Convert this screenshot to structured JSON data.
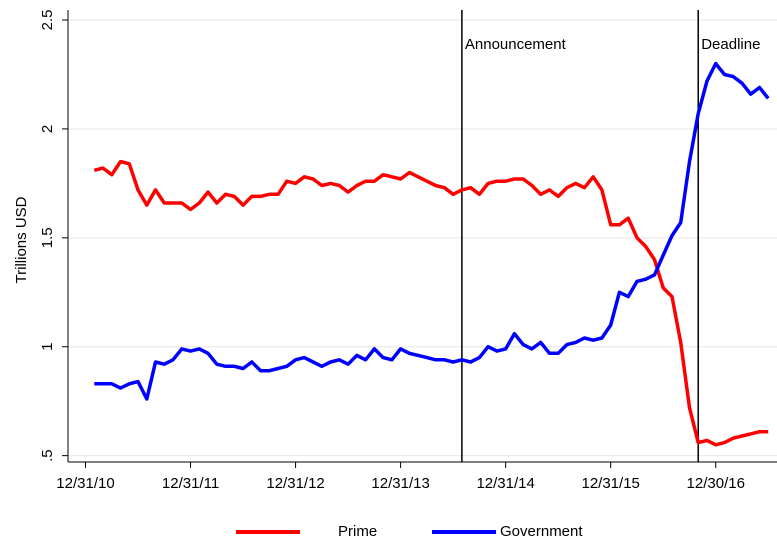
{
  "chart_data": {
    "type": "line",
    "y_label": "Trillions USD",
    "x": [
      "2011-01",
      "2011-02",
      "2011-03",
      "2011-04",
      "2011-05",
      "2011-06",
      "2011-07",
      "2011-08",
      "2011-09",
      "2011-10",
      "2011-11",
      "2011-12",
      "2012-01",
      "2012-02",
      "2012-03",
      "2012-04",
      "2012-05",
      "2012-06",
      "2012-07",
      "2012-08",
      "2012-09",
      "2012-10",
      "2012-11",
      "2012-12",
      "2013-01",
      "2013-02",
      "2013-03",
      "2013-04",
      "2013-05",
      "2013-06",
      "2013-07",
      "2013-08",
      "2013-09",
      "2013-10",
      "2013-11",
      "2013-12",
      "2014-01",
      "2014-02",
      "2014-03",
      "2014-04",
      "2014-05",
      "2014-06",
      "2014-07",
      "2014-08",
      "2014-09",
      "2014-10",
      "2014-11",
      "2014-12",
      "2015-01",
      "2015-02",
      "2015-03",
      "2015-04",
      "2015-05",
      "2015-06",
      "2015-07",
      "2015-08",
      "2015-09",
      "2015-10",
      "2015-11",
      "2015-12",
      "2016-01",
      "2016-02",
      "2016-03",
      "2016-04",
      "2016-05",
      "2016-06",
      "2016-07",
      "2016-08",
      "2016-09",
      "2016-10",
      "2016-11",
      "2016-12",
      "2017-01",
      "2017-02",
      "2017-03",
      "2017-04",
      "2017-05",
      "2017-06"
    ],
    "series": [
      {
        "name": "Prime",
        "color": "#ff0000",
        "values": [
          1.81,
          1.82,
          1.79,
          1.85,
          1.84,
          1.72,
          1.65,
          1.72,
          1.66,
          1.66,
          1.66,
          1.63,
          1.66,
          1.71,
          1.66,
          1.7,
          1.69,
          1.65,
          1.69,
          1.69,
          1.7,
          1.7,
          1.76,
          1.75,
          1.78,
          1.77,
          1.74,
          1.75,
          1.74,
          1.71,
          1.74,
          1.76,
          1.76,
          1.79,
          1.78,
          1.77,
          1.8,
          1.78,
          1.76,
          1.74,
          1.73,
          1.7,
          1.72,
          1.73,
          1.7,
          1.75,
          1.76,
          1.76,
          1.77,
          1.77,
          1.74,
          1.7,
          1.72,
          1.69,
          1.73,
          1.75,
          1.73,
          1.78,
          1.72,
          1.56,
          1.56,
          1.59,
          1.5,
          1.46,
          1.4,
          1.27,
          1.23,
          1.02,
          0.72,
          0.56,
          0.57,
          0.55,
          0.56,
          0.58,
          0.59,
          0.6,
          0.61,
          0.61
        ]
      },
      {
        "name": "Government",
        "color": "#0000ff",
        "values": [
          0.83,
          0.83,
          0.83,
          0.81,
          0.83,
          0.84,
          0.76,
          0.93,
          0.92,
          0.94,
          0.99,
          0.98,
          0.99,
          0.97,
          0.92,
          0.91,
          0.91,
          0.9,
          0.93,
          0.89,
          0.89,
          0.9,
          0.91,
          0.94,
          0.95,
          0.93,
          0.91,
          0.93,
          0.94,
          0.92,
          0.96,
          0.94,
          0.99,
          0.95,
          0.94,
          0.99,
          0.97,
          0.96,
          0.95,
          0.94,
          0.94,
          0.93,
          0.94,
          0.93,
          0.95,
          1.0,
          0.98,
          0.99,
          1.06,
          1.01,
          0.99,
          1.02,
          0.97,
          0.97,
          1.01,
          1.02,
          1.04,
          1.03,
          1.04,
          1.1,
          1.25,
          1.23,
          1.3,
          1.31,
          1.33,
          1.42,
          1.51,
          1.57,
          1.85,
          2.07,
          2.22,
          2.3,
          2.25,
          2.24,
          2.21,
          2.16,
          2.19,
          2.14
        ]
      }
    ],
    "annotations": [
      {
        "x": "2014-07",
        "text": "Announcement"
      },
      {
        "x": "2016-10",
        "text": "Deadline"
      }
    ],
    "xlim": [
      "2010-10",
      "2017-07"
    ],
    "xticks": [
      {
        "value": "2010-12",
        "label": "12/31/10"
      },
      {
        "value": "2011-12",
        "label": "12/31/11"
      },
      {
        "value": "2012-12",
        "label": "12/31/12"
      },
      {
        "value": "2013-12",
        "label": "12/31/13"
      },
      {
        "value": "2014-12",
        "label": "12/31/14"
      },
      {
        "value": "2015-12",
        "label": "12/31/15"
      },
      {
        "value": "2016-12",
        "label": "12/30/16"
      }
    ],
    "ylim": [
      0.48,
      2.5
    ],
    "yticks": [
      {
        "value": 0.5,
        "label": ".5"
      },
      1,
      1.5,
      2,
      2.5
    ],
    "grid": true,
    "legend": "bottom"
  }
}
